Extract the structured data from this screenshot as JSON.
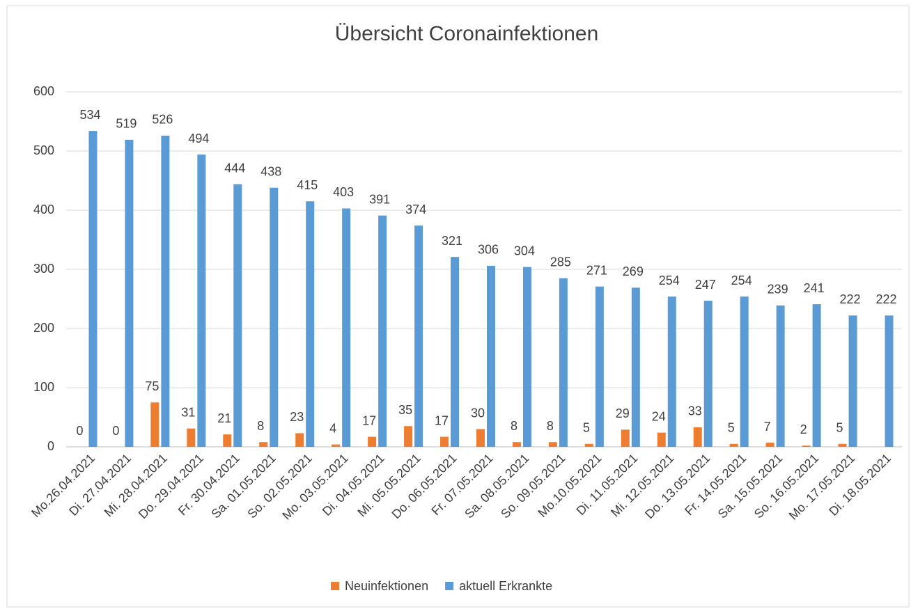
{
  "chart_data": {
    "type": "bar",
    "title": "Übersicht Coronainfektionen",
    "categories": [
      "Mo.26.04.2021",
      "Di. 27.04.2021",
      "Mi. 28.04.2021",
      "Do. 29.04.2021",
      "Fr. 30.04.2021",
      "Sa. 01.05.2021",
      "So. 02.05.2021",
      "Mo. 03.05.2021",
      "Di. 04.05.2021",
      "Mi. 05.05.2021",
      "Do. 06.05.2021",
      "Fr. 07.05.2021",
      "Sa. 08.05.2021",
      "So. 09.05.2021",
      "Mo.10.05.2021",
      "Di. 11.05.2021",
      "Mi. 12.05.2021",
      "Do. 13.05.2021",
      "Fr. 14.05.2021",
      "Sa. 15.05.2021",
      "So. 16.05.2021",
      "Mo. 17.05.2021",
      "Di. 18.05.2021"
    ],
    "series": [
      {
        "name": "Neuinfektionen",
        "color": "#ed7d31",
        "values": [
          0,
          0,
          75,
          31,
          21,
          8,
          23,
          4,
          17,
          35,
          17,
          30,
          8,
          8,
          5,
          29,
          24,
          33,
          5,
          7,
          2,
          5,
          null
        ]
      },
      {
        "name": "aktuell Erkrankte",
        "color": "#5b9bd5",
        "values": [
          534,
          519,
          526,
          494,
          444,
          438,
          415,
          403,
          391,
          374,
          321,
          306,
          304,
          285,
          271,
          269,
          254,
          247,
          254,
          239,
          241,
          222,
          222
        ]
      }
    ],
    "ylim": [
      0,
      600
    ],
    "yticks": [
      0,
      100,
      200,
      300,
      400,
      500,
      600
    ],
    "grid": true,
    "legend": "bottom"
  }
}
